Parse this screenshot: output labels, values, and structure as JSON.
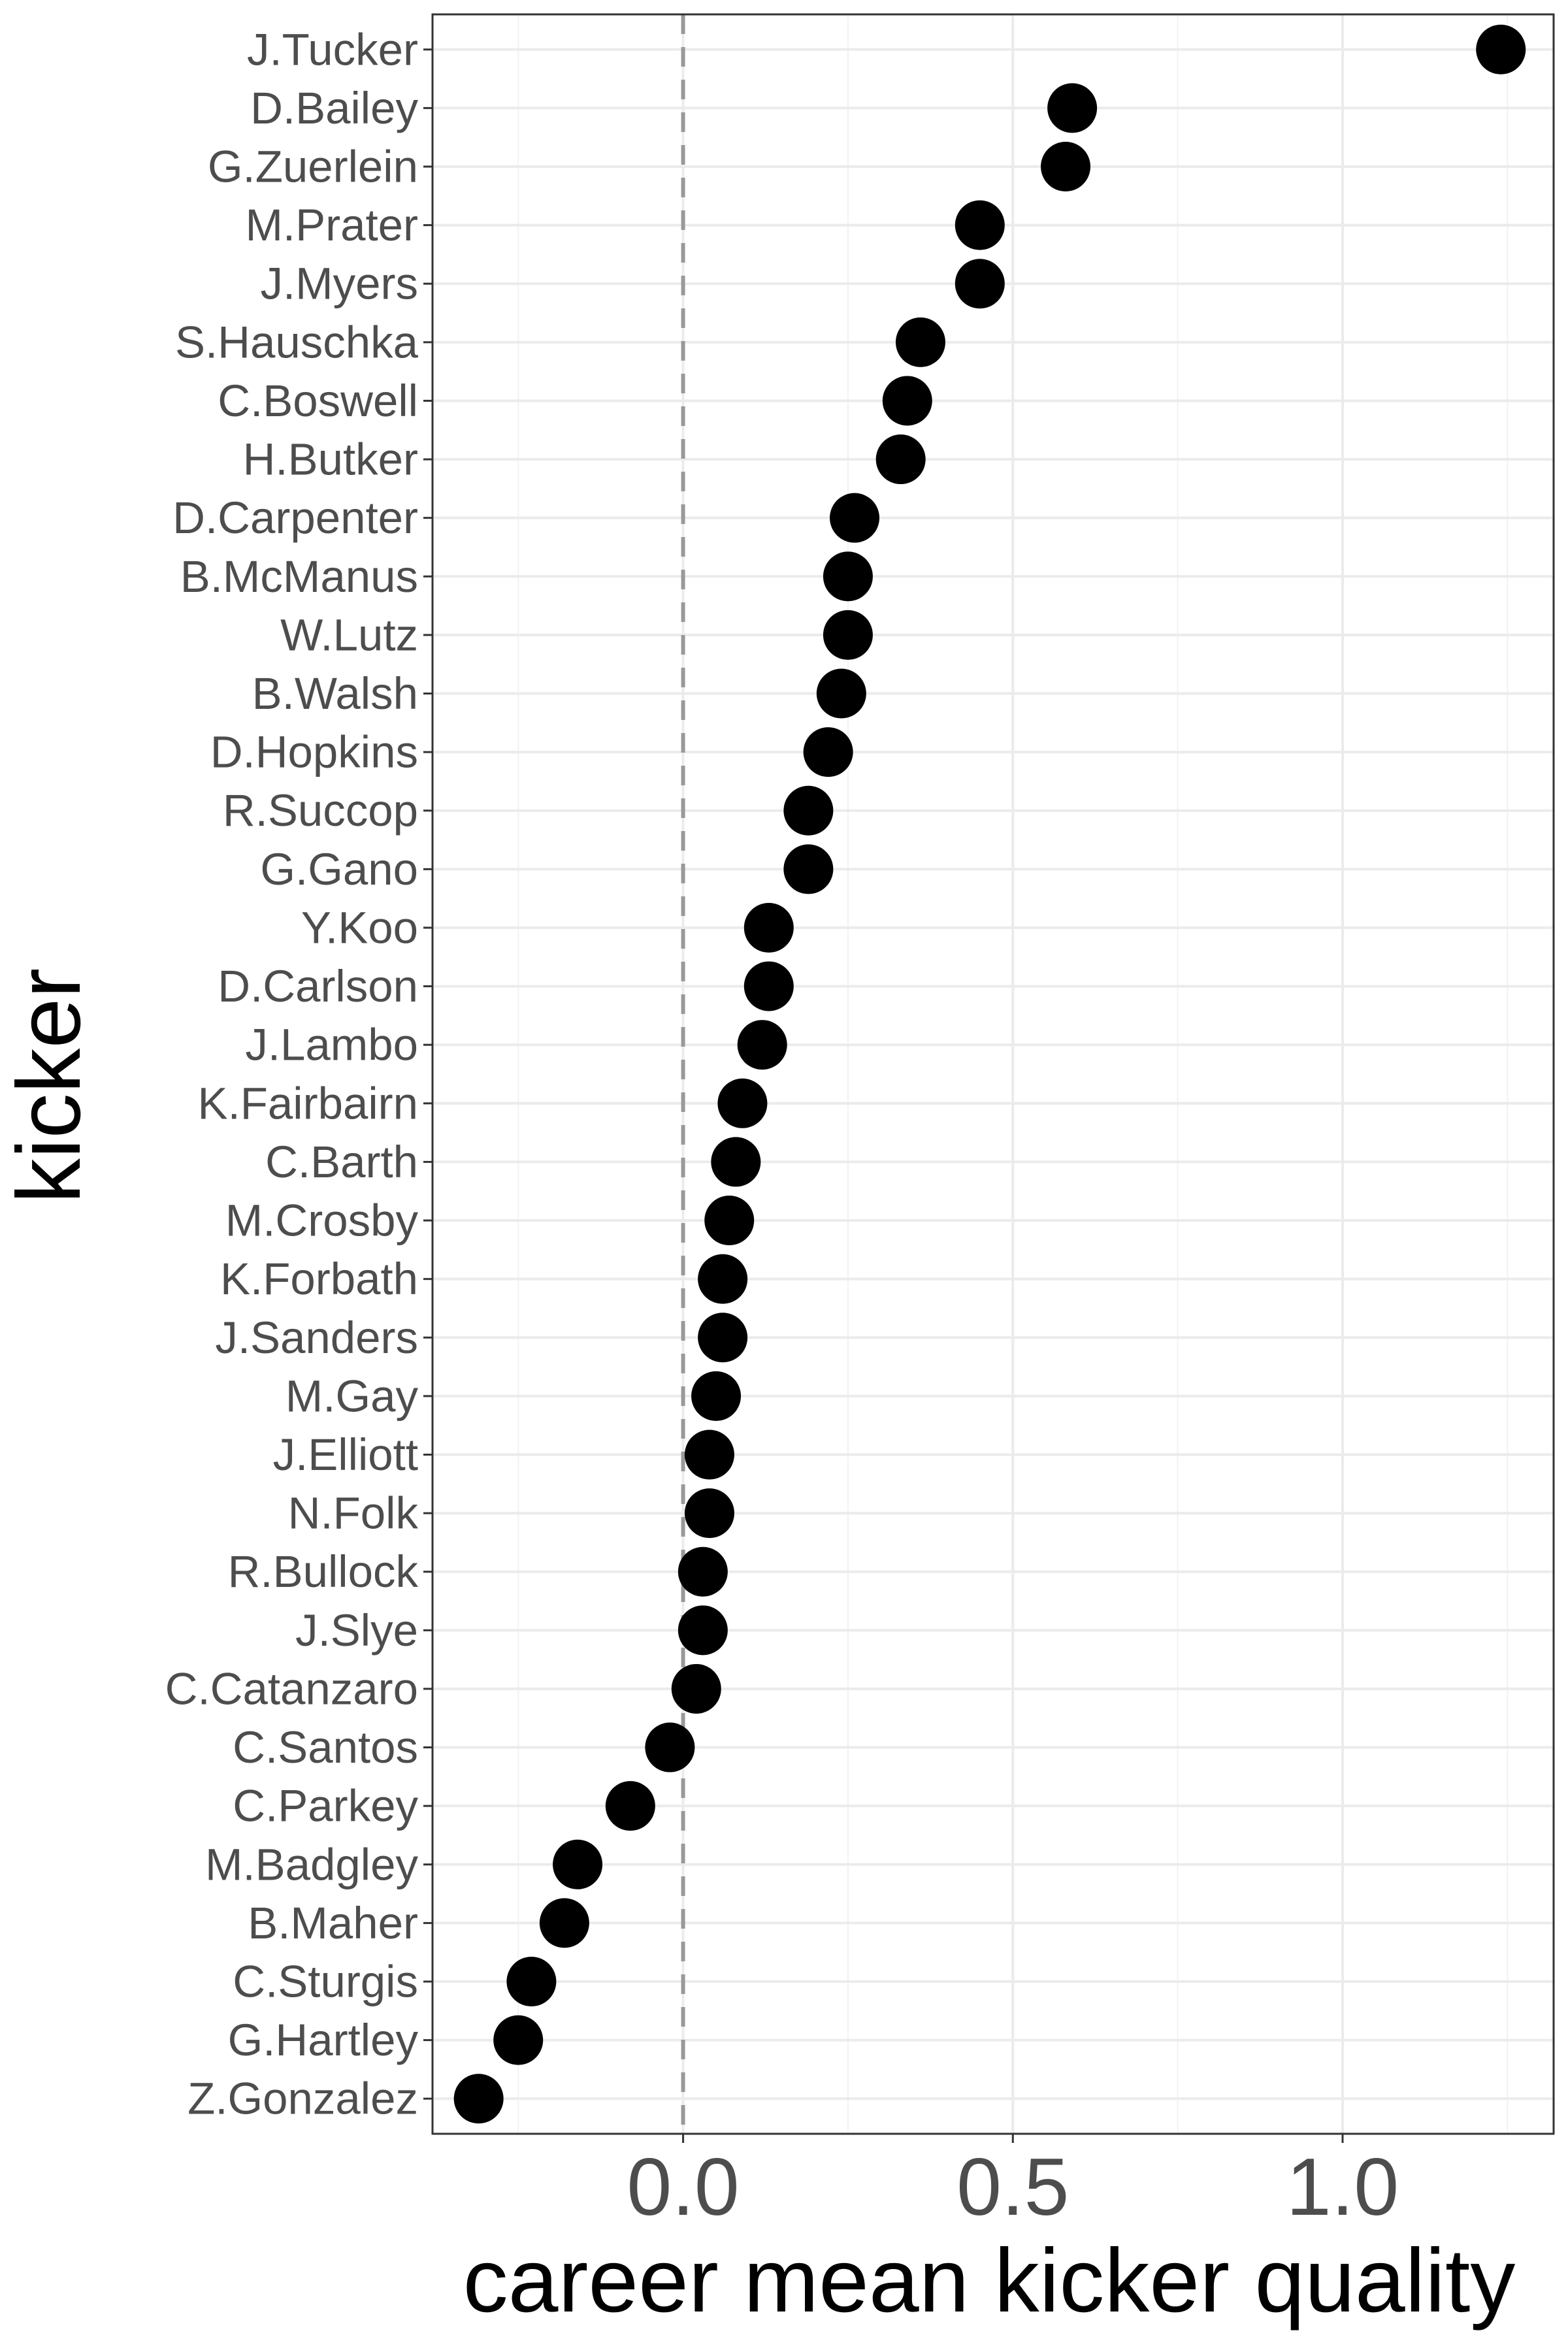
{
  "chart_data": {
    "type": "scatter",
    "xlabel": "career mean kicker quality",
    "ylabel": "kicker",
    "xlim": [
      -0.38,
      1.32
    ],
    "x_ticks": [
      0.0,
      0.5,
      1.0
    ],
    "x_tick_labels": [
      "0.0",
      "0.5",
      "1.0"
    ],
    "reference_line": {
      "x": 0.0,
      "style": "dashed",
      "color": "#999999"
    },
    "grid": true,
    "point_color": "#000000",
    "series": [
      {
        "points": [
          {
            "label": "J.Tucker",
            "x": 1.24
          },
          {
            "label": "D.Bailey",
            "x": 0.59
          },
          {
            "label": "G.Zuerlein",
            "x": 0.58
          },
          {
            "label": "M.Prater",
            "x": 0.45
          },
          {
            "label": "J.Myers",
            "x": 0.45
          },
          {
            "label": "S.Hauschka",
            "x": 0.36
          },
          {
            "label": "C.Boswell",
            "x": 0.34
          },
          {
            "label": "H.Butker",
            "x": 0.33
          },
          {
            "label": "D.Carpenter",
            "x": 0.26
          },
          {
            "label": "B.McManus",
            "x": 0.25
          },
          {
            "label": "W.Lutz",
            "x": 0.25
          },
          {
            "label": "B.Walsh",
            "x": 0.24
          },
          {
            "label": "D.Hopkins",
            "x": 0.22
          },
          {
            "label": "R.Succop",
            "x": 0.19
          },
          {
            "label": "G.Gano",
            "x": 0.19
          },
          {
            "label": "Y.Koo",
            "x": 0.13
          },
          {
            "label": "D.Carlson",
            "x": 0.13
          },
          {
            "label": "J.Lambo",
            "x": 0.12
          },
          {
            "label": "K.Fairbairn",
            "x": 0.09
          },
          {
            "label": "C.Barth",
            "x": 0.08
          },
          {
            "label": "M.Crosby",
            "x": 0.07
          },
          {
            "label": "K.Forbath",
            "x": 0.06
          },
          {
            "label": "J.Sanders",
            "x": 0.06
          },
          {
            "label": "M.Gay",
            "x": 0.05
          },
          {
            "label": "J.Elliott",
            "x": 0.04
          },
          {
            "label": "N.Folk",
            "x": 0.04
          },
          {
            "label": "R.Bullock",
            "x": 0.03
          },
          {
            "label": "J.Slye",
            "x": 0.03
          },
          {
            "label": "C.Catanzaro",
            "x": 0.02
          },
          {
            "label": "C.Santos",
            "x": -0.02
          },
          {
            "label": "C.Parkey",
            "x": -0.08
          },
          {
            "label": "M.Badgley",
            "x": -0.16
          },
          {
            "label": "B.Maher",
            "x": -0.18
          },
          {
            "label": "C.Sturgis",
            "x": -0.23
          },
          {
            "label": "G.Hartley",
            "x": -0.25
          },
          {
            "label": "Z.Gonzalez",
            "x": -0.31
          }
        ]
      }
    ]
  }
}
